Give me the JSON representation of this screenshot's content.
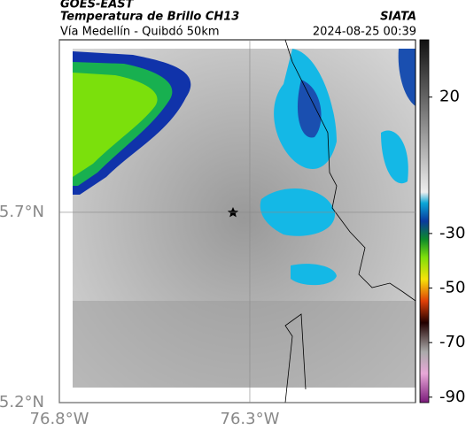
{
  "header": {
    "satellite": "GOES-EAST",
    "product": "Temperatura de Brillo CH13",
    "region": "Vía Medellín - Quibdó 50km",
    "source": "SIATA",
    "datetime": "2024-08-25 00:39"
  },
  "map": {
    "xlim": [
      -76.8,
      -75.865
    ],
    "ylim": [
      5.2,
      6.153
    ],
    "xticks": [
      {
        "value": -76.8,
        "label": "76.8°W"
      },
      {
        "value": -76.3,
        "label": "76.3°W"
      }
    ],
    "yticks": [
      {
        "value": 5.2,
        "label": "5.2°N"
      },
      {
        "value": 5.7,
        "label": "5.7°N"
      }
    ]
  },
  "colorbar": {
    "lim": [
      -92,
      41
    ],
    "ticks": [
      20,
      -30,
      -50,
      -70,
      -90
    ]
  }
}
